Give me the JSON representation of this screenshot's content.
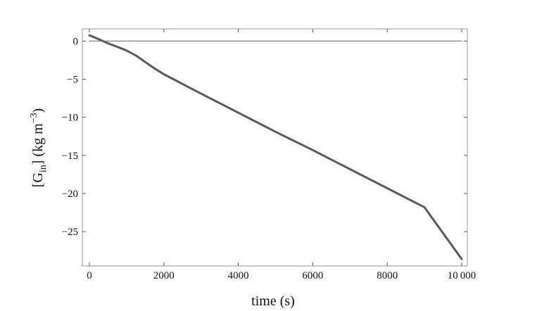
{
  "chart_data": {
    "type": "line",
    "xlabel": "time (s)",
    "ylabel": {
      "prefix": "[G",
      "sub": "in",
      "middle": "] (kg m",
      "sup": "−3",
      "suffix": ")"
    },
    "xlim": [
      0,
      10000
    ],
    "ylim": [
      -29.5,
      1.6
    ],
    "xticks": [
      {
        "value": 0,
        "label": "0"
      },
      {
        "value": 2000,
        "label": "2000"
      },
      {
        "value": 4000,
        "label": "4000"
      },
      {
        "value": 6000,
        "label": "6000"
      },
      {
        "value": 8000,
        "label": "8000"
      },
      {
        "value": 10000,
        "label": "10 000"
      }
    ],
    "yticks": [
      {
        "value": 0,
        "label": "0"
      },
      {
        "value": -5,
        "label": "−5"
      },
      {
        "value": -10,
        "label": "−10"
      },
      {
        "value": -15,
        "label": "−15"
      },
      {
        "value": -20,
        "label": "−20"
      },
      {
        "value": -25,
        "label": "−25"
      }
    ],
    "grid": false,
    "series": [
      {
        "color": "#5a5a5a",
        "x": [
          0,
          250,
          500,
          750,
          1000,
          1250,
          1500,
          1750,
          2000,
          3000,
          4000,
          5000,
          6000,
          7000,
          8000,
          9000,
          10000
        ],
        "y": [
          0.75,
          0.25,
          -0.3,
          -0.75,
          -1.25,
          -1.9,
          -2.75,
          -3.6,
          -4.35,
          -6.9,
          -9.4,
          -11.9,
          -14.3,
          -16.8,
          -19.3,
          -21.8,
          -28.6
        ]
      },
      {
        "color": "#707070",
        "x": [
          0,
          10000
        ],
        "y": [
          0,
          0
        ]
      }
    ]
  }
}
